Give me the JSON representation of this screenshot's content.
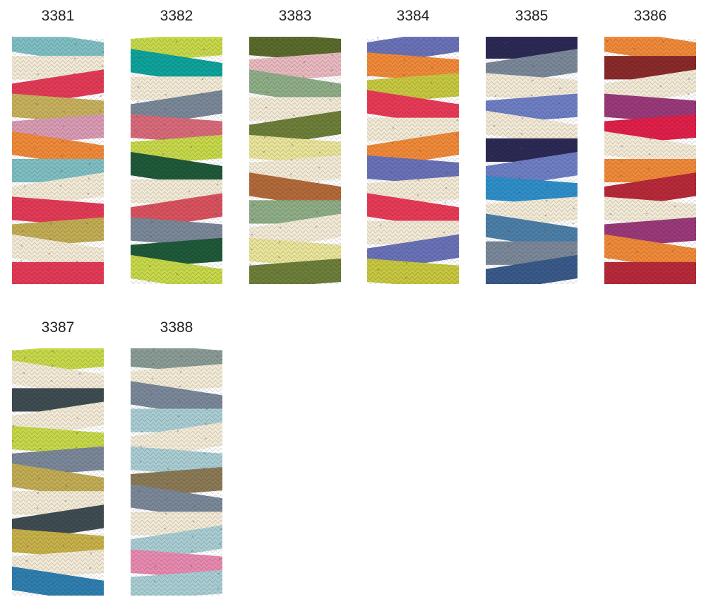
{
  "swatches": [
    {
      "code": "3381",
      "colors": [
        "#7fbfc4",
        "#f2ead6",
        "#e33b57",
        "#c7b15e",
        "#d99bb4",
        "#f08a3a",
        "#7fbfc4",
        "#f2ead6",
        "#e33b57",
        "#c2ad55",
        "#f2ead6",
        "#e33b57"
      ]
    },
    {
      "code": "3382",
      "colors": [
        "#c7d84a",
        "#0fa39c",
        "#f2ead6",
        "#7b8899",
        "#d96a7a",
        "#c7d84a",
        "#1f5a3a",
        "#f2ead6",
        "#d9535f",
        "#7b8899",
        "#1f5a3a",
        "#c7d84a"
      ]
    },
    {
      "code": "3383",
      "colors": [
        "#5a6b2c",
        "#e8b9bf",
        "#8fae87",
        "#f2ead6",
        "#6d7f3a",
        "#e9e49a",
        "#f2ead6",
        "#b36a3a",
        "#8fae87",
        "#f2ead6",
        "#e9e49a",
        "#6d7f3a"
      ]
    },
    {
      "code": "3384",
      "colors": [
        "#6a72b8",
        "#f08a3a",
        "#c7c840",
        "#e83b57",
        "#f2ead6",
        "#f08a3a",
        "#6a72b8",
        "#f2ead6",
        "#e83b57",
        "#f2ead6",
        "#6a72b8",
        "#c7c840"
      ]
    },
    {
      "code": "3385",
      "colors": [
        "#2c2a55",
        "#7b8899",
        "#f2ead6",
        "#6e7fc4",
        "#f2ead6",
        "#2c2a55",
        "#6e7fc4",
        "#2f8fc9",
        "#f2ead6",
        "#4c7fa8",
        "#7b8899",
        "#3a5a8a"
      ]
    },
    {
      "code": "3386",
      "colors": [
        "#f08a3a",
        "#8a2a2a",
        "#f2ead6",
        "#9a3a7a",
        "#e0204a",
        "#f2ead6",
        "#f08a3a",
        "#b82a3a",
        "#f2ead6",
        "#9a3a7a",
        "#f08a3a",
        "#b82a3a"
      ]
    },
    {
      "code": "3387",
      "colors": [
        "#c7d84a",
        "#f2ead6",
        "#3f4d52",
        "#f2ead6",
        "#c7d84a",
        "#7b8899",
        "#c2ad55",
        "#f2ead6",
        "#3f4d52",
        "#c7b14a",
        "#f2ead6",
        "#2f7fb0"
      ]
    },
    {
      "code": "3388",
      "colors": [
        "#8a9b95",
        "#f2ead6",
        "#7b8899",
        "#a9cdd3",
        "#f2ead6",
        "#a9cdd3",
        "#8b7a55",
        "#7b8899",
        "#f2ead6",
        "#a9cdd3",
        "#e88ab0",
        "#a9cdd3"
      ]
    }
  ]
}
